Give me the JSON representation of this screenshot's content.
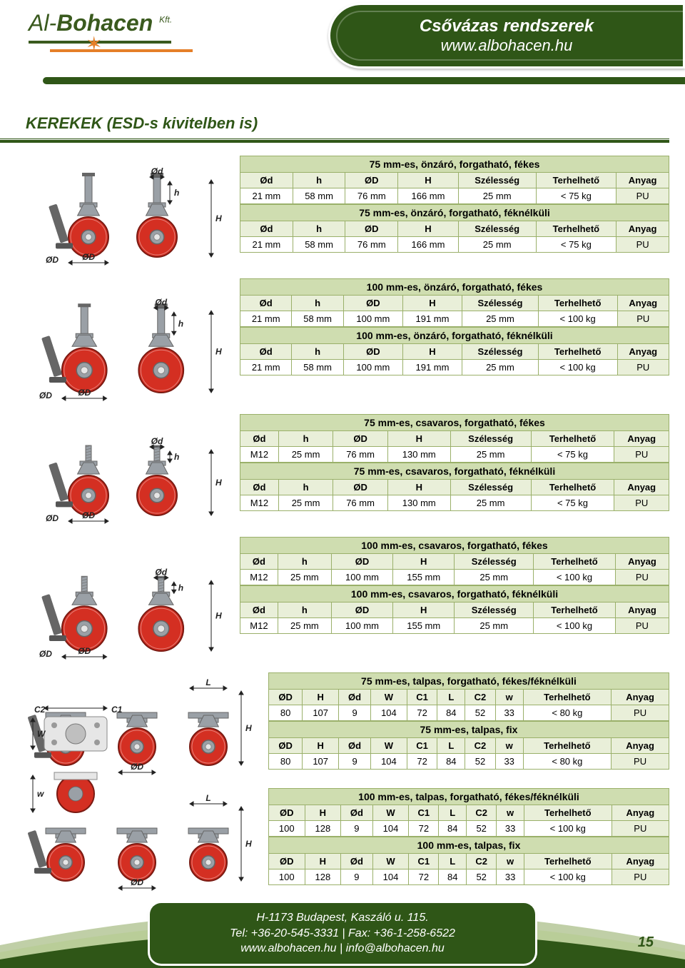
{
  "colors": {
    "brand_green": "#2f5617",
    "light_green": "#cfddb0",
    "pale_green": "#e9efd9",
    "border_green": "#9ab06a",
    "orange": "#e57f28",
    "wheel_red": "#d42f22",
    "wheel_grey": "#9aa0a6",
    "text": "#222"
  },
  "header": {
    "logo_prefix": "Al-",
    "logo_main": "Bohacen",
    "logo_suffix": "Kft.",
    "title": "Csővázas rendszerek",
    "url": "www.albohacen.hu"
  },
  "section_title": "KEREKEK (ESD-s kivitelben is)",
  "diagram_labels": {
    "Od": "Ød",
    "OD": "ØD",
    "h": "h",
    "H": "H",
    "L": "L",
    "C1": "C1",
    "C2": "C2",
    "W": "W",
    "w": "w"
  },
  "columns7": [
    "Ød",
    "h",
    "ØD",
    "H",
    "Szélesség",
    "Terhelhető",
    "Anyag"
  ],
  "columns10": [
    "ØD",
    "H",
    "Ød",
    "W",
    "C1",
    "L",
    "C2",
    "w",
    "Terhelhető",
    "Anyag"
  ],
  "groups": [
    {
      "id": "g1",
      "type": "pin",
      "blocks": [
        {
          "title": "75 mm-es, önzáró, forgatható, fékes",
          "row": [
            "21 mm",
            "58 mm",
            "76 mm",
            "166 mm",
            "25 mm",
            "< 75 kg",
            "PU"
          ]
        },
        {
          "title": "75 mm-es, önzáró, forgatható, féknélküli",
          "row": [
            "21 mm",
            "58 mm",
            "76 mm",
            "166 mm",
            "25 mm",
            "< 75 kg",
            "PU"
          ]
        }
      ]
    },
    {
      "id": "g2",
      "type": "pin",
      "blocks": [
        {
          "title": "100 mm-es, önzáró, forgatható, fékes",
          "row": [
            "21 mm",
            "58 mm",
            "100 mm",
            "191 mm",
            "25 mm",
            "< 100 kg",
            "PU"
          ]
        },
        {
          "title": "100 mm-es, önzáró, forgatható, féknélküli",
          "row": [
            "21 mm",
            "58 mm",
            "100 mm",
            "191 mm",
            "25 mm",
            "< 100 kg",
            "PU"
          ]
        }
      ]
    },
    {
      "id": "g3",
      "type": "bolt",
      "blocks": [
        {
          "title": "75 mm-es, csavaros, forgatható, fékes",
          "row": [
            "M12",
            "25 mm",
            "76 mm",
            "130 mm",
            "25 mm",
            "< 75 kg",
            "PU"
          ]
        },
        {
          "title": "75 mm-es, csavaros, forgatható, féknélküli",
          "row": [
            "M12",
            "25 mm",
            "76 mm",
            "130 mm",
            "25 mm",
            "< 75 kg",
            "PU"
          ]
        }
      ]
    },
    {
      "id": "g4",
      "type": "bolt",
      "blocks": [
        {
          "title": "100 mm-es, csavaros, forgatható, fékes",
          "row": [
            "M12",
            "25 mm",
            "100 mm",
            "155 mm",
            "25 mm",
            "< 100 kg",
            "PU"
          ]
        },
        {
          "title": "100 mm-es, csavaros, forgatható, féknélküli",
          "row": [
            "M12",
            "25 mm",
            "100 mm",
            "155 mm",
            "25 mm",
            "< 100 kg",
            "PU"
          ]
        }
      ]
    },
    {
      "id": "g5",
      "type": "plate",
      "blocks": [
        {
          "title": "75 mm-es, talpas, forgatható, fékes/féknélküli",
          "row": [
            "80",
            "107",
            "9",
            "104",
            "72",
            "84",
            "52",
            "33",
            "< 80 kg",
            "PU"
          ]
        },
        {
          "title": "75 mm-es, talpas, fix",
          "row": [
            "80",
            "107",
            "9",
            "104",
            "72",
            "84",
            "52",
            "33",
            "< 80 kg",
            "PU"
          ]
        }
      ]
    },
    {
      "id": "g6",
      "type": "plate",
      "blocks": [
        {
          "title": "100 mm-es, talpas, forgatható, fékes/féknélküli",
          "row": [
            "100",
            "128",
            "9",
            "104",
            "72",
            "84",
            "52",
            "33",
            "< 100 kg",
            "PU"
          ]
        },
        {
          "title": "100 mm-es, talpas, fix",
          "row": [
            "100",
            "128",
            "9",
            "104",
            "72",
            "84",
            "52",
            "33",
            "< 100 kg",
            "PU"
          ]
        }
      ]
    }
  ],
  "footer": {
    "addr": "H-1173 Budapest, Kaszáló u. 115.",
    "tel": "Tel: +36-20-545-3331 | Fax: +36-1-258-6522",
    "web": "www.albohacen.hu | info@albohacen.hu"
  },
  "page_number": "15"
}
